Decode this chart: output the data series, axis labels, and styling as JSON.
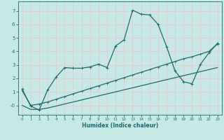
{
  "xlabel": "Humidex (Indice chaleur)",
  "bg_color": "#c8e8e8",
  "grid_color": "#e8c8c8",
  "line_color": "#1a6b6b",
  "xlim": [
    -0.5,
    23.5
  ],
  "ylim": [
    -0.7,
    7.7
  ],
  "yticks": [
    0,
    1,
    2,
    3,
    4,
    5,
    6,
    7
  ],
  "ytick_labels": [
    "-0",
    "1",
    "2",
    "3",
    "4",
    "5",
    "6",
    "7"
  ],
  "xticks": [
    0,
    1,
    2,
    3,
    4,
    5,
    6,
    7,
    8,
    9,
    10,
    11,
    12,
    13,
    14,
    15,
    16,
    17,
    18,
    19,
    20,
    21,
    22,
    23
  ],
  "s1_x": [
    0,
    1,
    2,
    3,
    4,
    5,
    6,
    7,
    8,
    9,
    10,
    11,
    12,
    13,
    14,
    15,
    16,
    17,
    18,
    19,
    20,
    21,
    22,
    23
  ],
  "s1_y": [
    1.2,
    -0.05,
    -0.35,
    1.15,
    2.1,
    2.8,
    2.75,
    2.75,
    2.85,
    3.05,
    2.8,
    4.4,
    4.85,
    7.05,
    6.75,
    6.7,
    6.0,
    4.35,
    2.55,
    1.75,
    1.6,
    3.05,
    3.9,
    4.6
  ],
  "s2_x": [
    0,
    1,
    2,
    3,
    4,
    5,
    6,
    7,
    8,
    9,
    10,
    11,
    12,
    13,
    14,
    15,
    16,
    17,
    18,
    19,
    20,
    21,
    22,
    23
  ],
  "s2_y": [
    1.1,
    0.0,
    0.1,
    0.25,
    0.45,
    0.65,
    0.85,
    1.05,
    1.25,
    1.45,
    1.65,
    1.85,
    2.05,
    2.25,
    2.45,
    2.65,
    2.85,
    3.05,
    3.25,
    3.45,
    3.6,
    3.8,
    4.0,
    4.55
  ],
  "s3_x": [
    0,
    1,
    2,
    3,
    4,
    5,
    6,
    7,
    8,
    9,
    10,
    11,
    12,
    13,
    14,
    15,
    16,
    17,
    18,
    19,
    20,
    21,
    22,
    23
  ],
  "s3_y": [
    -0.0,
    -0.3,
    -0.3,
    -0.2,
    -0.05,
    0.1,
    0.25,
    0.4,
    0.55,
    0.7,
    0.85,
    1.0,
    1.15,
    1.3,
    1.45,
    1.6,
    1.75,
    1.9,
    2.05,
    2.2,
    2.35,
    2.5,
    2.65,
    2.8
  ]
}
